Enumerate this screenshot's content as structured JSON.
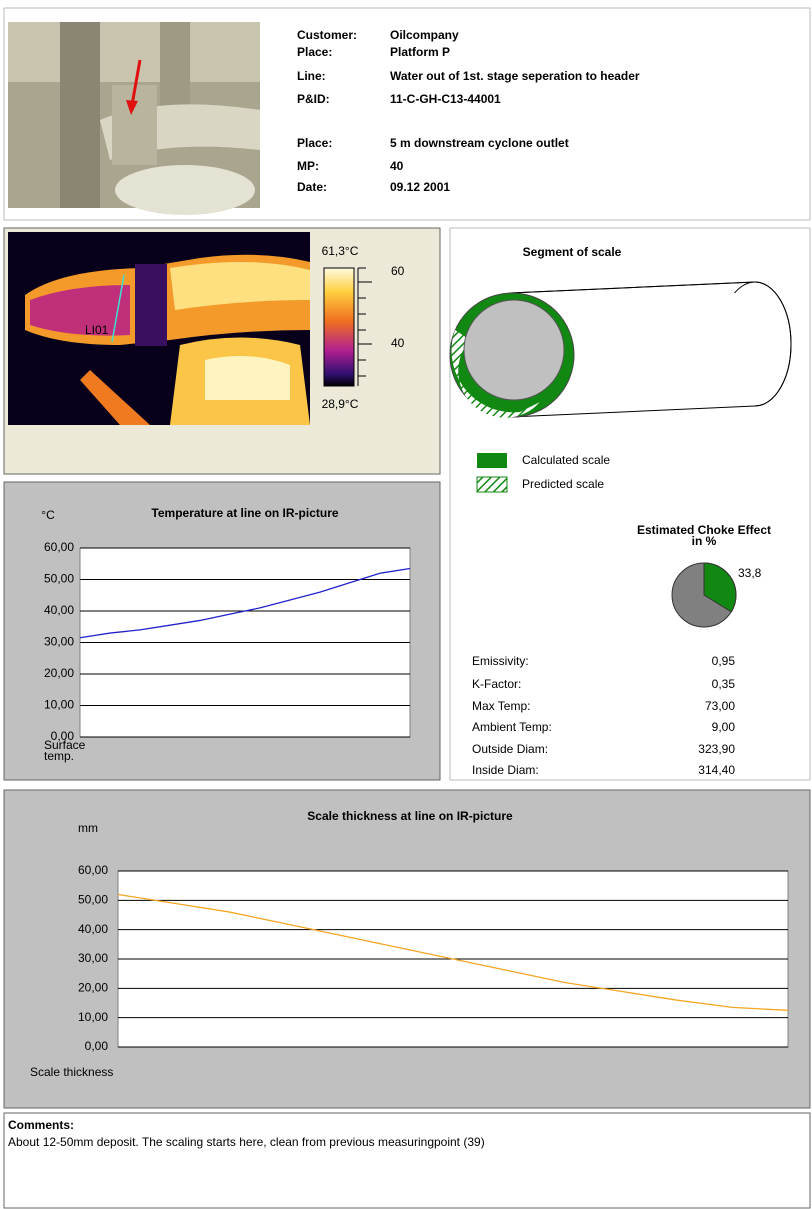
{
  "header": {
    "fields": [
      {
        "label": "Customer:",
        "value": "Oilcompany"
      },
      {
        "label": "Place:",
        "value": "Platform P"
      },
      {
        "label": "Line:",
        "value": "Water out of 1st. stage seperation to header"
      },
      {
        "label": "P&ID:",
        "value": "11-C-GH-C13-44001"
      },
      {
        "label": "Place:",
        "value": "5 m downstream cyclone outlet"
      },
      {
        "label": "MP:",
        "value": "40"
      },
      {
        "label": "Date:",
        "value": "09.12 2001"
      }
    ]
  },
  "ir_image": {
    "max_label": "61,3°C",
    "min_label": "28,9°C",
    "scale_ticks": [
      "60",
      "40"
    ],
    "line_label": "LI01"
  },
  "segment": {
    "title": "Segment of scale",
    "legend": [
      "Calculated scale",
      "Predicted scale"
    ]
  },
  "parameters": [
    {
      "label": "Emissivity:",
      "value": "0,95"
    },
    {
      "label": "K-Factor:",
      "value": "0,35"
    },
    {
      "label": "Max Temp:",
      "value": "73,00"
    },
    {
      "label": "Ambient Temp:",
      "value": "9,00"
    },
    {
      "label": "Outside Diam:",
      "value": "323,90"
    },
    {
      "label": "Inside Diam:",
      "value": "314,40"
    }
  ],
  "comments": {
    "title": "Comments:",
    "text": "About 12-50mm deposit. The scaling starts here, clean from previous measuringpoint (39)"
  },
  "chart_data": [
    {
      "type": "line",
      "title": "Temperature at line on IR-picture",
      "unit_label": "°C",
      "x_label": [
        "Surface",
        "temp."
      ],
      "color": "#2222cc",
      "values": [
        31.5,
        33,
        34,
        35.5,
        37,
        39,
        41,
        43.5,
        46,
        49,
        52,
        53.5
      ],
      "ylim": [
        0,
        60
      ],
      "yticks": [
        {
          "value": 0,
          "label": "0,00"
        },
        {
          "value": 10,
          "label": "10,00"
        },
        {
          "value": 20,
          "label": "20,00"
        },
        {
          "value": 30,
          "label": "30,00"
        },
        {
          "value": 40,
          "label": "40,00"
        },
        {
          "value": 50,
          "label": "50,00"
        },
        {
          "value": 60,
          "label": "60,00"
        }
      ],
      "grid": true
    },
    {
      "type": "line",
      "title": "Scale thickness at line on IR-picture",
      "unit_label": "mm",
      "x_label": [
        "Scale thickness"
      ],
      "color": "#f5a623",
      "values": [
        52,
        49,
        46,
        42,
        38,
        34,
        30,
        26,
        22,
        19,
        16,
        13.5,
        12.5
      ],
      "ylim": [
        0,
        60
      ],
      "yticks": [
        {
          "value": 0,
          "label": "0,00"
        },
        {
          "value": 10,
          "label": "10,00"
        },
        {
          "value": 20,
          "label": "20,00"
        },
        {
          "value": 30,
          "label": "30,00"
        },
        {
          "value": 40,
          "label": "40,00"
        },
        {
          "value": 50,
          "label": "50,00"
        },
        {
          "value": 60,
          "label": "60,00"
        }
      ],
      "grid": true
    },
    {
      "type": "pie",
      "title": [
        "Estimated Choke Effect",
        "in %"
      ],
      "values": [
        33.8
      ],
      "value_labels": [
        "33,8"
      ],
      "color": "#118811"
    }
  ]
}
